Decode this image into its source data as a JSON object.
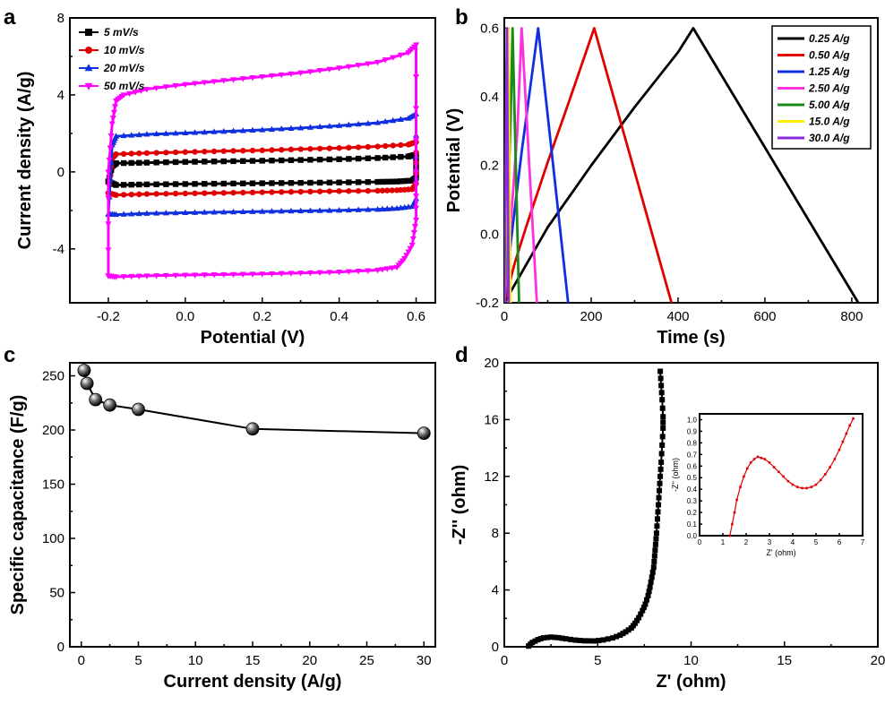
{
  "chart_data": [
    {
      "panel": "a",
      "type": "line",
      "xlabel": "Potential (V)",
      "ylabel": "Current density (A/g)",
      "xlim": [
        -0.3,
        0.65
      ],
      "ylim": [
        -6.8,
        8
      ],
      "xticks": [
        -0.2,
        0.0,
        0.2,
        0.4,
        0.6
      ],
      "xtick_labels": [
        "-0.2",
        "0.0",
        "0.2",
        "0.4",
        "0.6"
      ],
      "yticks": [
        -4,
        0,
        4,
        8
      ],
      "ytick_labels": [
        "-4",
        "0",
        "4",
        "8"
      ],
      "legend_position": "top-left",
      "series": [
        {
          "name": "5 mV/s",
          "color": "#000000",
          "marker": "square",
          "x": [
            -0.2,
            -0.19,
            -0.18,
            -0.1,
            0.0,
            0.1,
            0.2,
            0.3,
            0.4,
            0.5,
            0.58,
            0.6,
            0.6,
            0.59,
            0.55,
            0.5,
            0.4,
            0.3,
            0.2,
            0.1,
            0.0,
            -0.1,
            -0.18,
            -0.2
          ],
          "y": [
            -0.5,
            0.3,
            0.45,
            0.48,
            0.52,
            0.55,
            0.58,
            0.62,
            0.66,
            0.72,
            0.8,
            0.9,
            -0.3,
            -0.45,
            -0.5,
            -0.52,
            -0.55,
            -0.57,
            -0.59,
            -0.61,
            -0.63,
            -0.65,
            -0.68,
            -0.5
          ]
        },
        {
          "name": "10 mV/s",
          "color": "#e00000",
          "marker": "circle",
          "x": [
            -0.2,
            -0.19,
            -0.18,
            -0.1,
            0.0,
            0.1,
            0.2,
            0.3,
            0.4,
            0.5,
            0.58,
            0.6,
            0.6,
            0.59,
            0.55,
            0.5,
            0.4,
            0.3,
            0.2,
            0.1,
            0.0,
            -0.1,
            -0.18,
            -0.2
          ],
          "y": [
            -1.1,
            0.7,
            0.92,
            0.98,
            1.03,
            1.08,
            1.12,
            1.18,
            1.24,
            1.32,
            1.42,
            1.55,
            -0.6,
            -0.9,
            -0.95,
            -0.98,
            -1.0,
            -1.03,
            -1.06,
            -1.09,
            -1.12,
            -1.15,
            -1.2,
            -1.1
          ]
        },
        {
          "name": "20 mV/s",
          "color": "#1030e0",
          "marker": "triangle-up",
          "x": [
            -0.2,
            -0.19,
            -0.18,
            -0.1,
            0.0,
            0.1,
            0.2,
            0.3,
            0.4,
            0.5,
            0.58,
            0.6,
            0.6,
            0.59,
            0.55,
            0.5,
            0.4,
            0.3,
            0.2,
            0.1,
            0.0,
            -0.1,
            -0.18,
            -0.2
          ],
          "y": [
            -2.2,
            1.4,
            1.85,
            1.95,
            2.02,
            2.1,
            2.18,
            2.28,
            2.4,
            2.55,
            2.78,
            3.0,
            -1.4,
            -1.8,
            -1.9,
            -1.95,
            -2.0,
            -2.03,
            -2.06,
            -2.09,
            -2.12,
            -2.16,
            -2.22,
            -2.2
          ]
        },
        {
          "name": "50 mV/s",
          "color": "#ff00ff",
          "marker": "triangle-down",
          "x": [
            -0.2,
            -0.2,
            -0.19,
            -0.18,
            -0.16,
            -0.1,
            0.0,
            0.1,
            0.2,
            0.3,
            0.4,
            0.5,
            0.58,
            0.6,
            0.6,
            0.6,
            0.59,
            0.57,
            0.55,
            0.5,
            0.4,
            0.3,
            0.2,
            0.1,
            0.0,
            -0.1,
            -0.18,
            -0.2
          ],
          "y": [
            -5.4,
            0.0,
            2.5,
            3.7,
            4.0,
            4.3,
            4.55,
            4.75,
            4.95,
            5.15,
            5.4,
            5.7,
            6.2,
            6.6,
            0.0,
            -2.5,
            -3.8,
            -4.5,
            -4.95,
            -5.1,
            -5.2,
            -5.25,
            -5.3,
            -5.33,
            -5.36,
            -5.4,
            -5.45,
            -5.4
          ]
        }
      ]
    },
    {
      "panel": "b",
      "type": "line",
      "xlabel": "Time (s)",
      "ylabel": "Potential (V)",
      "xlim": [
        0,
        860
      ],
      "ylim": [
        -0.2,
        0.63
      ],
      "xticks": [
        0,
        200,
        400,
        600,
        800
      ],
      "xtick_labels": [
        "0",
        "200",
        "400",
        "600",
        "800"
      ],
      "yticks": [
        -0.2,
        0.0,
        0.2,
        0.4,
        0.6
      ],
      "ytick_labels": [
        "-0.2",
        "0.0",
        "0.2",
        "0.4",
        "0.6"
      ],
      "legend_position": "top-right",
      "series": [
        {
          "name": "0.25 A/g",
          "color": "#000000",
          "x": [
            0,
            50,
            100,
            200,
            300,
            400,
            435,
            815
          ],
          "y": [
            -0.2,
            -0.09,
            0.02,
            0.2,
            0.37,
            0.53,
            0.6,
            -0.2
          ]
        },
        {
          "name": "0.50 A/g",
          "color": "#e00000",
          "x": [
            0,
            25,
            50,
            100,
            150,
            207,
            385
          ],
          "y": [
            -0.2,
            -0.08,
            0.02,
            0.21,
            0.39,
            0.6,
            -0.2
          ]
        },
        {
          "name": "1.25 A/g",
          "color": "#1030e0",
          "x": [
            0,
            10,
            20,
            40,
            60,
            78,
            147
          ],
          "y": [
            -0.2,
            -0.08,
            0.03,
            0.24,
            0.43,
            0.6,
            -0.2
          ]
        },
        {
          "name": "2.50 A/g",
          "color": "#ff30dd",
          "x": [
            0,
            10,
            20,
            30,
            40,
            75
          ],
          "y": [
            -0.2,
            -0.04,
            0.12,
            0.3,
            0.6,
            -0.2
          ]
        },
        {
          "name": "5.00 A/g",
          "color": "#1a8a1a",
          "x": [
            0,
            5,
            10,
            15,
            19,
            34
          ],
          "y": [
            -0.2,
            -0.03,
            0.15,
            0.36,
            0.6,
            -0.2
          ]
        },
        {
          "name": "15.0 A/g",
          "color": "#ffee00",
          "x": [
            0,
            3,
            6,
            9,
            14
          ],
          "y": [
            -0.2,
            0.02,
            0.28,
            0.6,
            -0.2
          ]
        },
        {
          "name": "30.0 A/g",
          "color": "#8a2be2",
          "x": [
            0,
            2,
            4,
            6,
            10
          ],
          "y": [
            -0.2,
            0.05,
            0.32,
            0.6,
            -0.2
          ]
        }
      ]
    },
    {
      "panel": "c",
      "type": "line",
      "xlabel": "Current density (A/g)",
      "ylabel": "Specific capacitance (F/g)",
      "xlim": [
        -1,
        31
      ],
      "ylim": [
        0,
        262
      ],
      "xticks": [
        0,
        5,
        10,
        15,
        20,
        25,
        30
      ],
      "xtick_labels": [
        "0",
        "5",
        "10",
        "15",
        "20",
        "25",
        "30"
      ],
      "yticks": [
        0,
        50,
        100,
        150,
        200,
        250
      ],
      "ytick_labels": [
        "0",
        "50",
        "100",
        "150",
        "200",
        "250"
      ],
      "series": [
        {
          "name": "",
          "color": "#000000",
          "marker": "sphere",
          "x": [
            0.25,
            0.5,
            1.25,
            2.5,
            5,
            15,
            30
          ],
          "y": [
            255,
            243,
            228,
            223,
            219,
            201,
            197
          ]
        }
      ]
    },
    {
      "panel": "d",
      "type": "scatter",
      "xlabel": "Z' (ohm)",
      "ylabel": "-Z'' (ohm)",
      "xlim": [
        0,
        20
      ],
      "ylim": [
        0,
        20
      ],
      "xticks": [
        0,
        5,
        10,
        15,
        20
      ],
      "xtick_labels": [
        "0",
        "5",
        "10",
        "15",
        "20"
      ],
      "yticks": [
        0,
        4,
        8,
        12,
        16,
        20
      ],
      "ytick_labels": [
        "0",
        "4",
        "8",
        "12",
        "16",
        "20"
      ],
      "series": [
        {
          "name": "",
          "color": "#000000",
          "marker": "square",
          "x": [
            1.3,
            1.5,
            1.8,
            2.1,
            2.5,
            2.9,
            3.3,
            3.8,
            4.3,
            4.8,
            5.3,
            5.8,
            6.2,
            6.5,
            6.8,
            7.0,
            7.2,
            7.4,
            7.55,
            7.7,
            7.8,
            7.9,
            8.0,
            8.05,
            8.1,
            8.15,
            8.2,
            8.25,
            8.3,
            8.35,
            8.4,
            8.45,
            8.5,
            8.5,
            8.45,
            8.4,
            8.35
          ],
          "y": [
            0.05,
            0.3,
            0.5,
            0.63,
            0.68,
            0.64,
            0.56,
            0.47,
            0.42,
            0.41,
            0.48,
            0.62,
            0.82,
            1.05,
            1.32,
            1.65,
            2.05,
            2.55,
            3.0,
            3.6,
            4.2,
            4.9,
            5.6,
            6.4,
            7.2,
            8.0,
            9.0,
            10.0,
            11.0,
            12.0,
            13.0,
            14.2,
            15.4,
            16.2,
            17.4,
            18.4,
            19.4
          ]
        }
      ],
      "inset": {
        "type": "line",
        "xlabel": "Z' (ohm)",
        "ylabel": "-Z'' (ohm)",
        "xlim": [
          0,
          7
        ],
        "ylim": [
          0,
          1.05
        ],
        "xticks": [
          0,
          1,
          2,
          3,
          4,
          5,
          6,
          7
        ],
        "xtick_labels": [
          "0",
          "1",
          "2",
          "3",
          "4",
          "5",
          "6",
          "7"
        ],
        "yticks": [
          0.0,
          0.1,
          0.2,
          0.3,
          0.4,
          0.5,
          0.6,
          0.7,
          0.8,
          0.9,
          1.0
        ],
        "ytick_labels": [
          "0.0",
          "0.1",
          "0.2",
          "0.3",
          "0.4",
          "0.5",
          "0.6",
          "0.7",
          "0.8",
          "0.9",
          "1.0"
        ],
        "series": [
          {
            "name": "",
            "color": "#e00000",
            "marker": "small-square",
            "x": [
              1.3,
              1.4,
              1.5,
              1.6,
              1.75,
              1.9,
              2.05,
              2.2,
              2.35,
              2.5,
              2.65,
              2.8,
              3.0,
              3.2,
              3.4,
              3.6,
              3.8,
              4.0,
              4.2,
              4.4,
              4.6,
              4.8,
              5.0,
              5.2,
              5.4,
              5.6,
              5.8,
              6.0,
              6.15,
              6.3,
              6.45,
              6.6
            ],
            "y": [
              0.0,
              0.1,
              0.2,
              0.31,
              0.42,
              0.51,
              0.58,
              0.63,
              0.66,
              0.68,
              0.67,
              0.66,
              0.63,
              0.59,
              0.55,
              0.51,
              0.47,
              0.44,
              0.42,
              0.41,
              0.41,
              0.42,
              0.44,
              0.48,
              0.53,
              0.59,
              0.66,
              0.74,
              0.81,
              0.88,
              0.95,
              1.01
            ]
          }
        ]
      }
    }
  ]
}
